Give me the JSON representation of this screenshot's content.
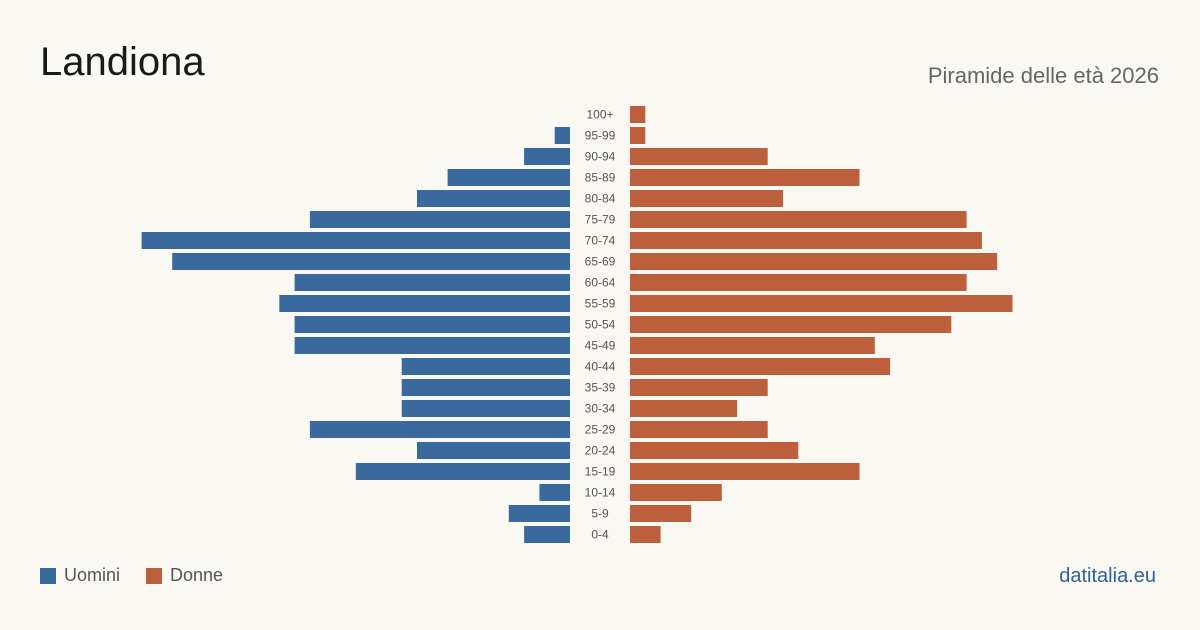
{
  "header": {
    "title": "Landiona",
    "subtitle": "Piramide delle età 2026"
  },
  "footer": {
    "source": "datitalia.eu"
  },
  "colors": {
    "male": "#3a6a9d",
    "female": "#bc5f3c",
    "age_label": "#555555"
  },
  "chart_data": {
    "type": "bar",
    "orientation": "horizontal-pyramid",
    "categories": [
      "100+",
      "95-99",
      "90-94",
      "85-89",
      "80-84",
      "75-79",
      "70-74",
      "65-69",
      "60-64",
      "55-59",
      "50-54",
      "45-49",
      "40-44",
      "35-39",
      "30-34",
      "25-29",
      "20-24",
      "15-19",
      "10-14",
      "5-9",
      "0-4"
    ],
    "series": [
      {
        "name": "Uomini",
        "values": [
          0,
          1,
          3,
          8,
          10,
          17,
          28,
          26,
          18,
          19,
          18,
          18,
          11,
          11,
          11,
          17,
          10,
          14,
          2,
          4,
          3
        ]
      },
      {
        "name": "Donne",
        "values": [
          1,
          1,
          9,
          15,
          10,
          22,
          23,
          24,
          22,
          25,
          21,
          16,
          17,
          9,
          7,
          9,
          11,
          15,
          6,
          4,
          2
        ]
      }
    ],
    "legend": {
      "position": "bottom-left",
      "items": [
        "Uomini",
        "Donne"
      ]
    },
    "grid": false
  }
}
